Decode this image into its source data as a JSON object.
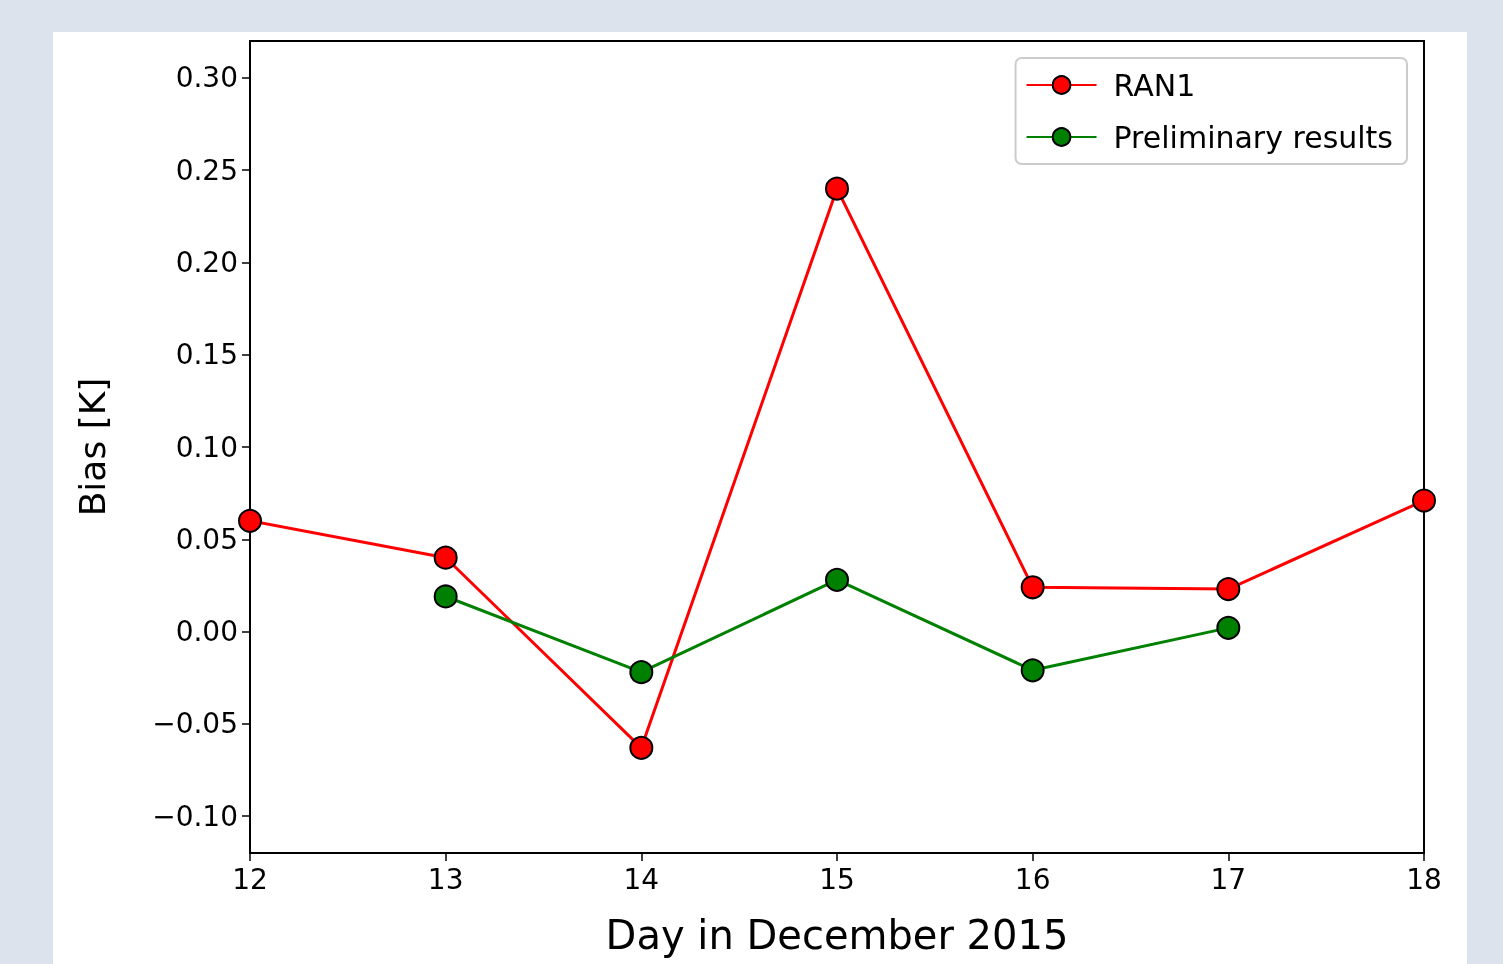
{
  "chart_data": {
    "type": "line",
    "xlabel": "Day in December 2015",
    "ylabel": "Bias [K]",
    "xlim": [
      12,
      18
    ],
    "xticks": [
      12,
      13,
      14,
      15,
      16,
      17,
      18
    ],
    "ylim": [
      -0.12,
      0.32
    ],
    "yticks": [
      {
        "value": -0.1,
        "label": "−0.10"
      },
      {
        "value": -0.05,
        "label": "−0.05"
      },
      {
        "value": 0,
        "label": "0.00"
      },
      {
        "value": 0.05,
        "label": "0.05"
      },
      {
        "value": 0.1,
        "label": "0.10"
      },
      {
        "value": 0.15,
        "label": "0.15"
      },
      {
        "value": 0.2,
        "label": "0.20"
      },
      {
        "value": 0.25,
        "label": "0.25"
      },
      {
        "value": 0.3,
        "label": "0.30"
      }
    ],
    "series": [
      {
        "name": "RAN1",
        "color": "#ff0000",
        "x": [
          12,
          13,
          14,
          15,
          16,
          17,
          18
        ],
        "values": [
          0.06,
          0.04,
          -0.063,
          0.24,
          0.024,
          0.023,
          0.071
        ]
      },
      {
        "name": "Preliminary results",
        "color": "#008000",
        "x": [
          13,
          14,
          15,
          16,
          17
        ],
        "values": [
          0.019,
          -0.022,
          0.028,
          -0.021,
          0.002
        ]
      }
    ],
    "marker": "circle",
    "line_style": "solid",
    "grid": false,
    "legend": "top right"
  }
}
